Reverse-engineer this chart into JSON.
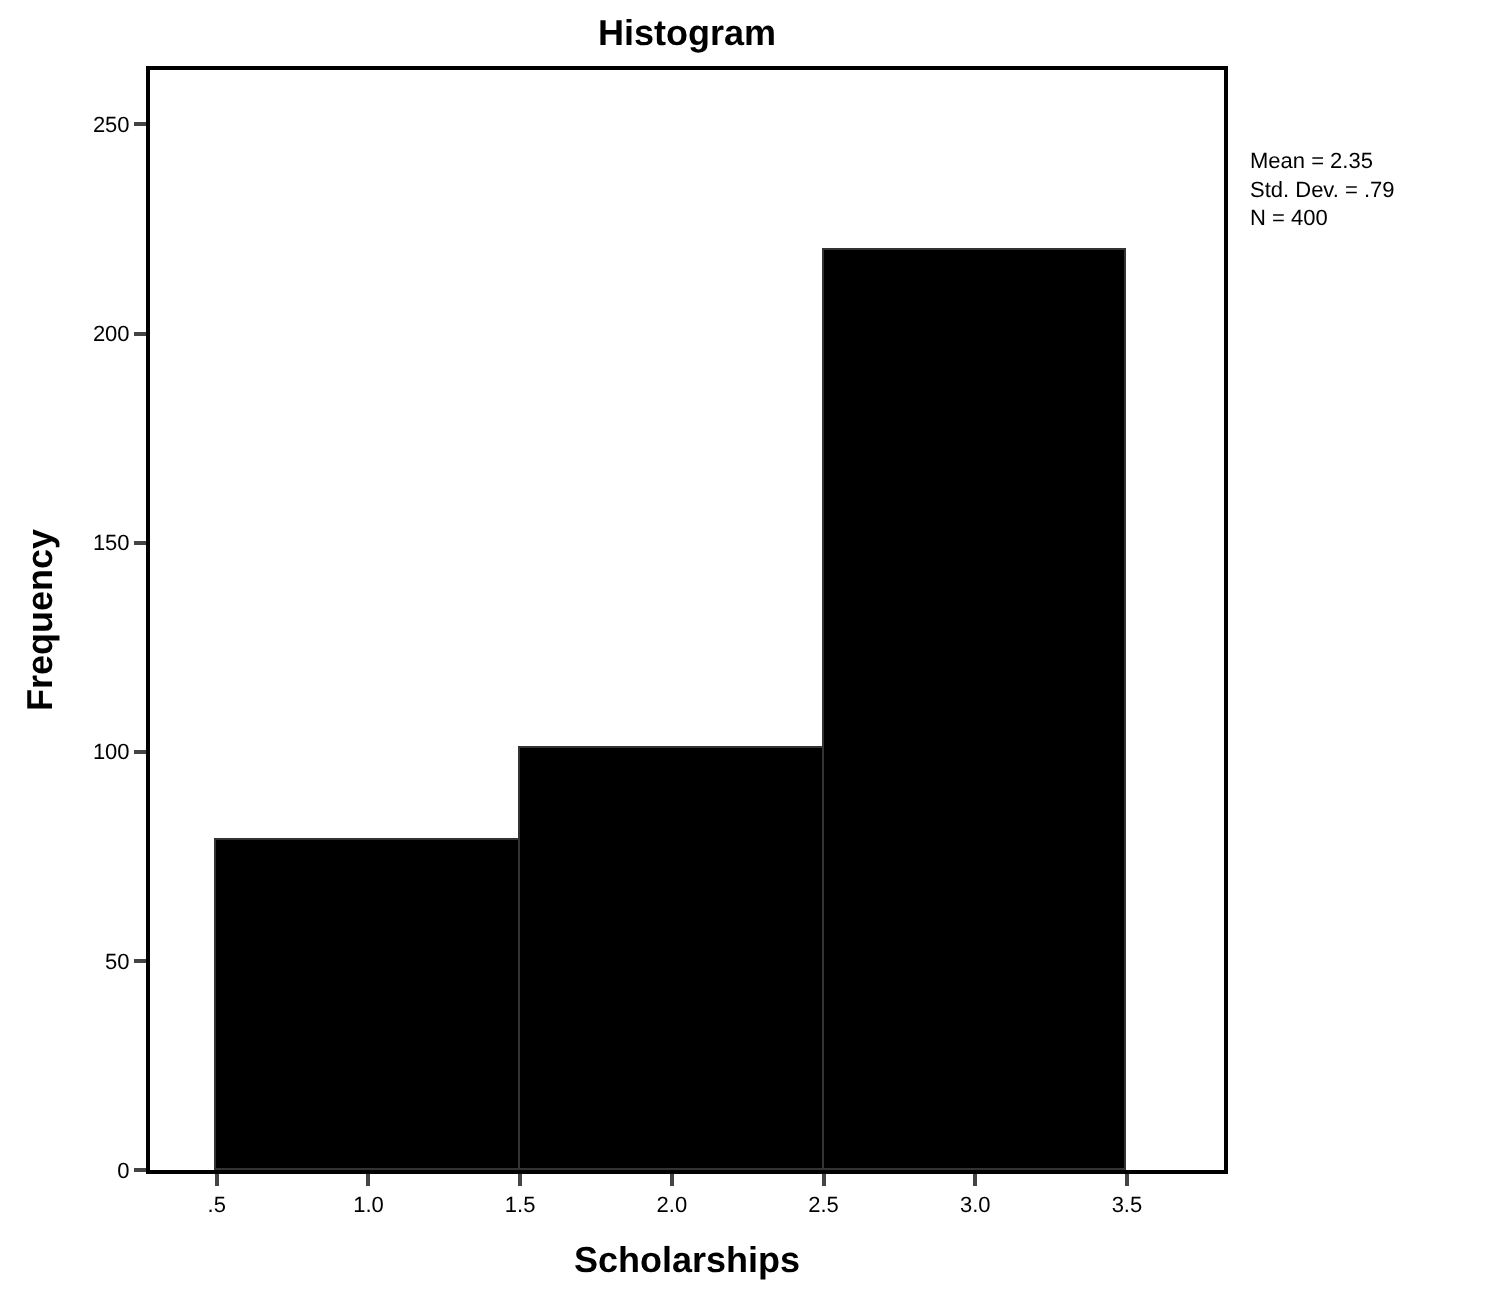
{
  "chart_data": {
    "type": "histogram",
    "title": "Histogram",
    "xlabel": "Scholarships",
    "ylabel": "Frequency",
    "bins": [
      0.5,
      1.5,
      2.5,
      3.5
    ],
    "values": [
      79,
      101,
      220
    ],
    "color": "#000000",
    "xlim": [
      0.28,
      3.82
    ],
    "ylim": [
      0,
      263
    ],
    "xticks": [
      {
        "value": 0.5,
        "label": ".5"
      },
      {
        "value": 1.0,
        "label": "1.0"
      },
      {
        "value": 1.5,
        "label": "1.5"
      },
      {
        "value": 2.0,
        "label": "2.0"
      },
      {
        "value": 2.5,
        "label": "2.5"
      },
      {
        "value": 3.0,
        "label": "3.0"
      },
      {
        "value": 3.5,
        "label": "3.5"
      }
    ],
    "yticks": [
      0,
      50,
      100,
      150,
      200,
      250
    ],
    "annotations": [
      "Mean = 2.35\nStd. Dev. = .79\nN = 400"
    ]
  }
}
